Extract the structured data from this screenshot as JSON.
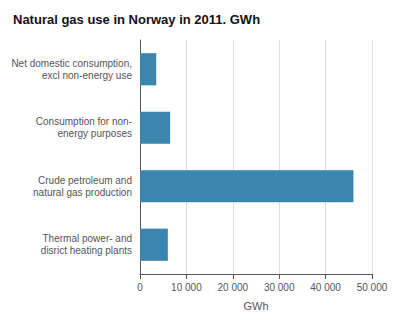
{
  "chart_data": {
    "type": "bar",
    "orientation": "horizontal",
    "title": "Natural gas use in Norway in 2011. GWh",
    "categories": [
      "Net domestic consumption,\nexcl non-energy use",
      "Consumption for non-\nenergy purposes",
      "Crude petroleum and\nnatural gas production",
      "Thermal power- and\ndisrict heating plants"
    ],
    "values": [
      3500,
      6500,
      46000,
      6000
    ],
    "color": "#3a86ae",
    "xlabel": "GWh",
    "xlim": [
      0,
      50000
    ],
    "xticks": [
      0,
      {
        "value": 10000,
        "label": "10 000"
      },
      {
        "value": 20000,
        "label": "20 000"
      },
      {
        "value": 30000,
        "label": "30 000"
      },
      {
        "value": 40000,
        "label": "40 000"
      },
      {
        "value": 50000,
        "label": "50 000"
      }
    ],
    "grid": true
  }
}
